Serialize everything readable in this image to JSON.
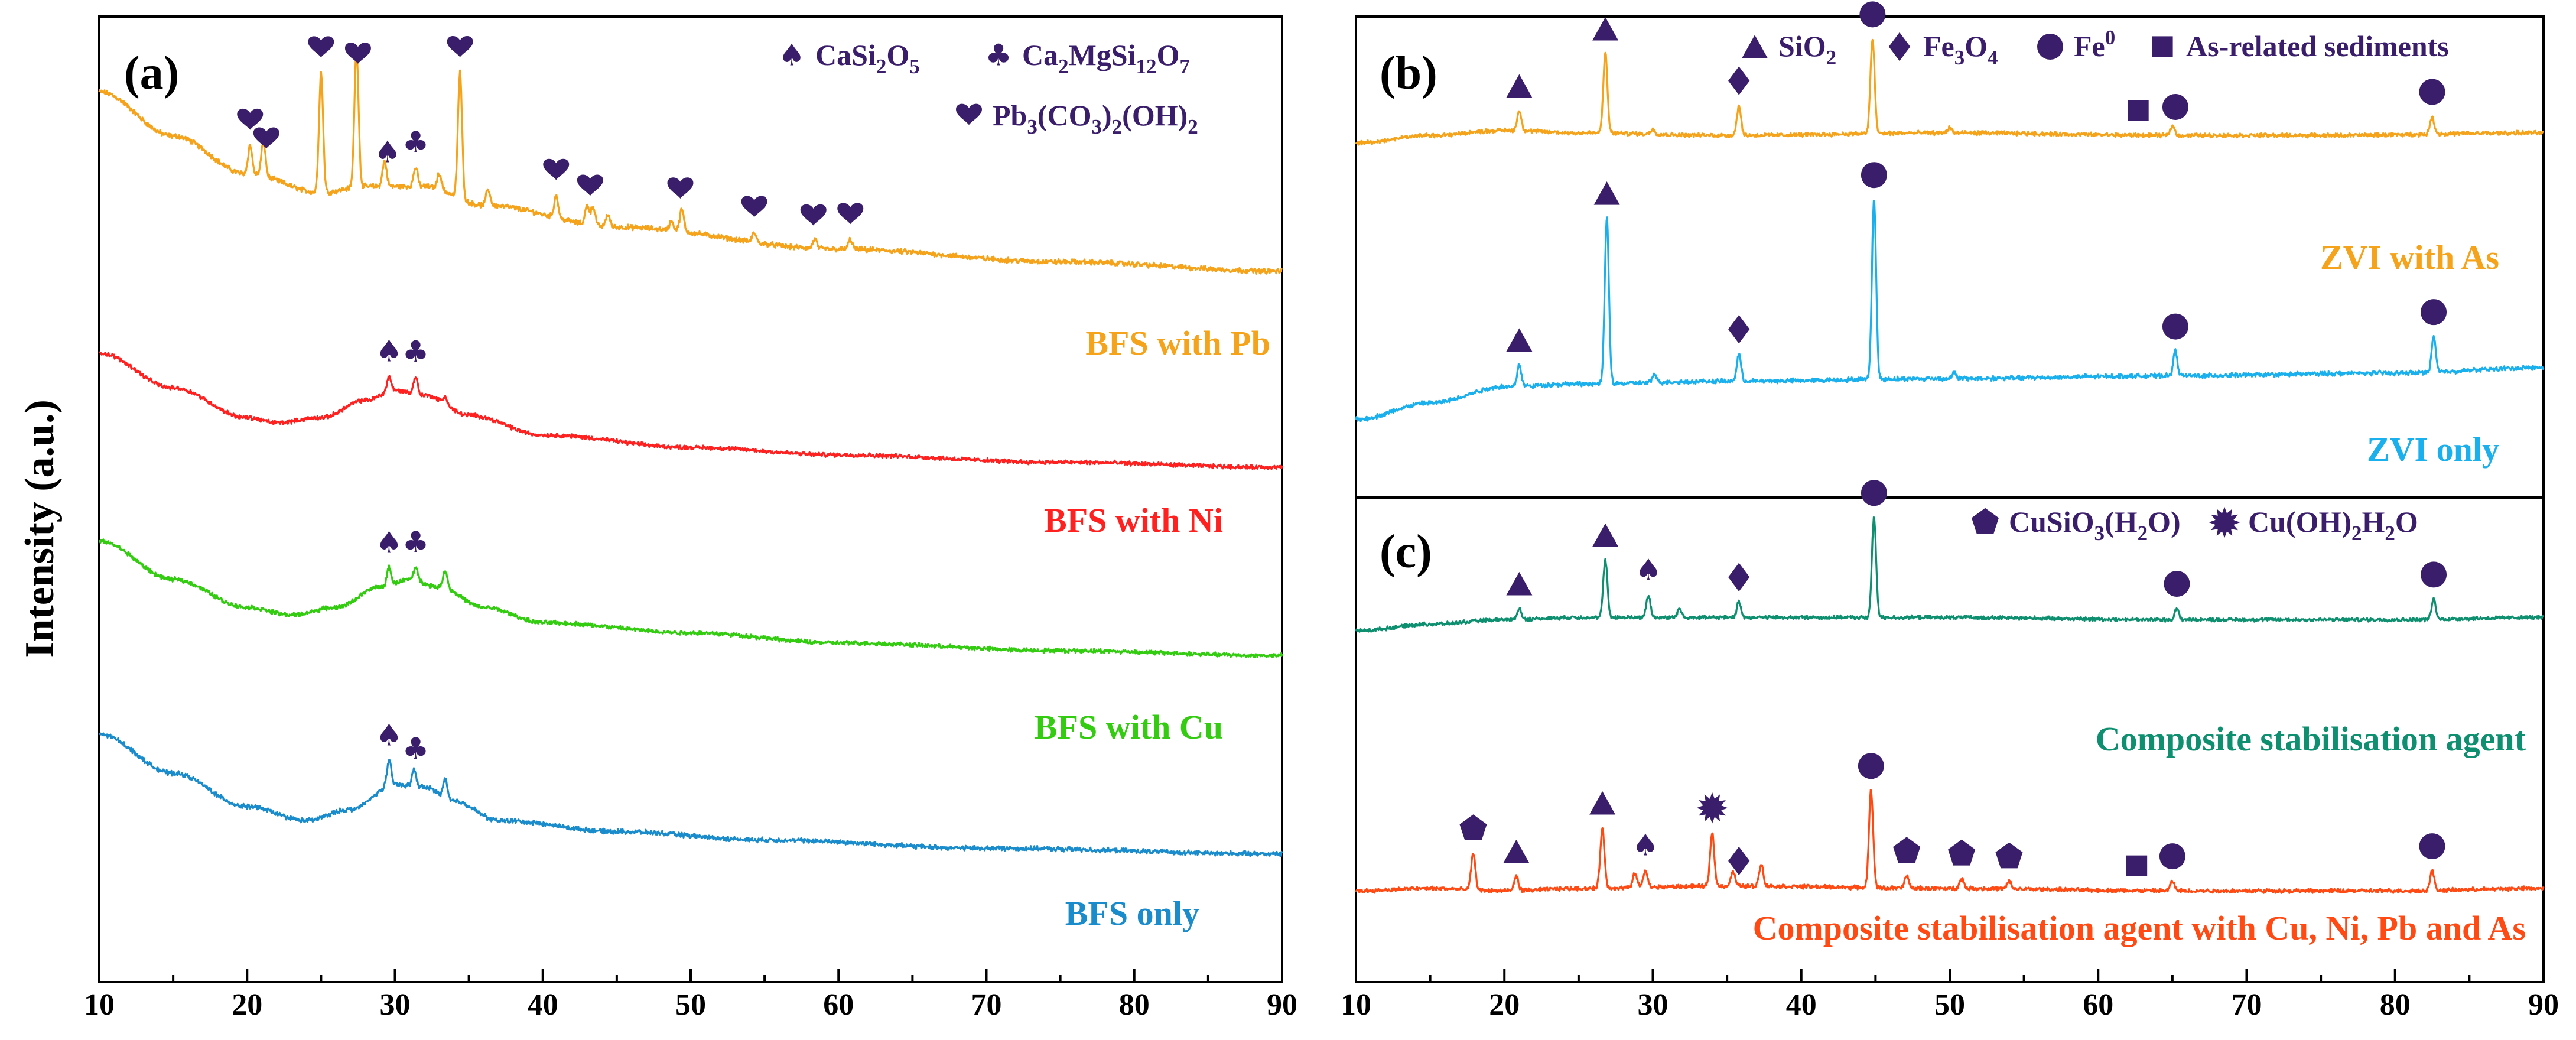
{
  "figure": {
    "ylabel": "Intensity (a.u.)",
    "xlabel": ""
  },
  "colors": {
    "marker": "#3b1e6b",
    "axis": "#000000"
  },
  "chart_data": [
    {
      "panel": "(a)",
      "type": "line",
      "xlim": [
        10,
        90
      ],
      "xticks": [
        10,
        20,
        30,
        40,
        50,
        60,
        70,
        80,
        90
      ],
      "legend_position": "top-right",
      "legend": [
        {
          "symbol": "spade",
          "label": "CaSi2O5"
        },
        {
          "symbol": "club",
          "label": "Ca2MgSi12O7"
        },
        {
          "symbol": "heart",
          "label": "Pb3(CO3)2(OH)2"
        }
      ],
      "series": [
        {
          "name": "BFS with Pb",
          "color": "#f5a31a",
          "baseline": [
            [
              10,
              0.76
            ],
            [
              15,
              0.62
            ],
            [
              20,
              0.5
            ],
            [
              25,
              0.44
            ],
            [
              28,
              0.46
            ],
            [
              32,
              0.46
            ],
            [
              36,
              0.4
            ],
            [
              45,
              0.33
            ],
            [
              60,
              0.26
            ],
            [
              75,
              0.22
            ],
            [
              90,
              0.19
            ]
          ],
          "peaks": [
            [
              20.2,
              0.09
            ],
            [
              21.1,
              0.11
            ],
            [
              25.0,
              0.38
            ],
            [
              27.4,
              0.44
            ],
            [
              29.3,
              0.08
            ],
            [
              31.4,
              0.06
            ],
            [
              33.0,
              0.05
            ],
            [
              34.4,
              0.4
            ],
            [
              36.3,
              0.05
            ],
            [
              40.9,
              0.07
            ],
            [
              43.0,
              0.06
            ],
            [
              43.4,
              0.06
            ],
            [
              44.4,
              0.04
            ],
            [
              48.7,
              0.03
            ],
            [
              49.4,
              0.07
            ],
            [
              54.3,
              0.03
            ],
            [
              58.4,
              0.03
            ],
            [
              60.8,
              0.03
            ]
          ],
          "markers": [
            {
              "symbol": "heart",
              "x": 20.2
            },
            {
              "symbol": "heart",
              "x": 21.3
            },
            {
              "symbol": "heart",
              "x": 25.0
            },
            {
              "symbol": "heart",
              "x": 27.5
            },
            {
              "symbol": "spade",
              "x": 29.5
            },
            {
              "symbol": "club",
              "x": 31.4
            },
            {
              "symbol": "heart",
              "x": 34.4
            },
            {
              "symbol": "heart",
              "x": 40.9
            },
            {
              "symbol": "heart",
              "x": 43.2
            },
            {
              "symbol": "heart",
              "x": 49.3
            },
            {
              "symbol": "heart",
              "x": 54.3
            },
            {
              "symbol": "heart",
              "x": 58.3
            },
            {
              "symbol": "heart",
              "x": 60.8
            }
          ]
        },
        {
          "name": "BFS with Ni",
          "color": "#ff2020",
          "baseline": [
            [
              10,
              0.72
            ],
            [
              15,
              0.58
            ],
            [
              20,
              0.46
            ],
            [
              22,
              0.44
            ],
            [
              25,
              0.46
            ],
            [
              28,
              0.53
            ],
            [
              30,
              0.57
            ],
            [
              32,
              0.55
            ],
            [
              35,
              0.47
            ],
            [
              40,
              0.39
            ],
            [
              50,
              0.34
            ],
            [
              60,
              0.31
            ],
            [
              75,
              0.28
            ],
            [
              90,
              0.26
            ]
          ],
          "peaks": [
            [
              29.6,
              0.06
            ],
            [
              31.4,
              0.07
            ],
            [
              33.4,
              0.03
            ]
          ],
          "markers": [
            {
              "symbol": "spade",
              "x": 29.6
            },
            {
              "symbol": "club",
              "x": 31.4
            }
          ]
        },
        {
          "name": "BFS with Cu",
          "color": "#33cc11",
          "baseline": [
            [
              10,
              0.73
            ],
            [
              15,
              0.58
            ],
            [
              20,
              0.47
            ],
            [
              23,
              0.44
            ],
            [
              26,
              0.47
            ],
            [
              29,
              0.55
            ],
            [
              31,
              0.58
            ],
            [
              33,
              0.55
            ],
            [
              36,
              0.47
            ],
            [
              40,
              0.41
            ],
            [
              50,
              0.37
            ],
            [
              60,
              0.33
            ],
            [
              75,
              0.3
            ],
            [
              90,
              0.28
            ]
          ],
          "peaks": [
            [
              29.6,
              0.07
            ],
            [
              31.4,
              0.05
            ],
            [
              33.4,
              0.07
            ]
          ],
          "markers": [
            {
              "symbol": "spade",
              "x": 29.6
            },
            {
              "symbol": "club",
              "x": 31.4
            }
          ]
        },
        {
          "name": "BFS only",
          "color": "#1a8ccc",
          "baseline": [
            [
              10,
              0.76
            ],
            [
              15,
              0.62
            ],
            [
              20,
              0.5
            ],
            [
              24,
              0.45
            ],
            [
              27,
              0.49
            ],
            [
              30,
              0.58
            ],
            [
              32,
              0.57
            ],
            [
              34,
              0.52
            ],
            [
              37,
              0.45
            ],
            [
              45,
              0.41
            ],
            [
              55,
              0.38
            ],
            [
              70,
              0.35
            ],
            [
              90,
              0.33
            ]
          ],
          "peaks": [
            [
              29.6,
              0.09
            ],
            [
              31.3,
              0.06
            ],
            [
              33.4,
              0.07
            ]
          ],
          "markers": [
            {
              "symbol": "spade",
              "x": 29.6
            },
            {
              "symbol": "club",
              "x": 31.4
            }
          ]
        }
      ]
    },
    {
      "panel": "(b)",
      "type": "line",
      "xlim": [
        10,
        90
      ],
      "legend_position": "top-right",
      "legend": [
        {
          "symbol": "triangle",
          "label": "SiO2"
        },
        {
          "symbol": "diamond",
          "label": "Fe3O4"
        },
        {
          "symbol": "circle",
          "label": "Fe0"
        },
        {
          "symbol": "square",
          "label": "As-related sediments"
        }
      ],
      "series": [
        {
          "name": "ZVI with As",
          "color": "#f5a31a",
          "baseline": [
            [
              10,
              0.52
            ],
            [
              15,
              0.55
            ],
            [
              20,
              0.57
            ],
            [
              25,
              0.56
            ],
            [
              35,
              0.55
            ],
            [
              50,
              0.56
            ],
            [
              65,
              0.55
            ],
            [
              75,
              0.55
            ],
            [
              90,
              0.56
            ]
          ],
          "peaks": [
            [
              21.0,
              0.08
            ],
            [
              26.8,
              0.32
            ],
            [
              35.8,
              0.12
            ],
            [
              44.8,
              0.38
            ],
            [
              65.0,
              0.04
            ],
            [
              82.5,
              0.07
            ],
            [
              30.0,
              0.02
            ],
            [
              50.0,
              0.02
            ]
          ],
          "markers": [
            {
              "symbol": "triangle",
              "x": 21.0
            },
            {
              "symbol": "triangle",
              "x": 26.8
            },
            {
              "symbol": "diamond",
              "x": 35.8
            },
            {
              "symbol": "circle",
              "x": 44.8
            },
            {
              "symbol": "square",
              "x": 62.7
            },
            {
              "symbol": "circle",
              "x": 65.2
            },
            {
              "symbol": "circle",
              "x": 82.5
            }
          ]
        },
        {
          "name": "ZVI only",
          "color": "#1ab0ee",
          "baseline": [
            [
              10,
              0.24
            ],
            [
              15,
              0.3
            ],
            [
              20,
              0.36
            ],
            [
              25,
              0.37
            ],
            [
              35,
              0.38
            ],
            [
              50,
              0.39
            ],
            [
              65,
              0.4
            ],
            [
              80,
              0.41
            ],
            [
              90,
              0.43
            ]
          ],
          "peaks": [
            [
              21.0,
              0.08
            ],
            [
              26.9,
              0.61
            ],
            [
              35.8,
              0.1
            ],
            [
              44.9,
              0.66
            ],
            [
              65.2,
              0.09
            ],
            [
              82.6,
              0.13
            ],
            [
              30.1,
              0.03
            ],
            [
              50.3,
              0.02
            ]
          ],
          "markers": [
            {
              "symbol": "triangle",
              "x": 21.0
            },
            {
              "symbol": "triangle",
              "x": 26.9
            },
            {
              "symbol": "diamond",
              "x": 35.8
            },
            {
              "symbol": "circle",
              "x": 44.9
            },
            {
              "symbol": "circle",
              "x": 65.2
            },
            {
              "symbol": "circle",
              "x": 82.6
            }
          ]
        }
      ]
    },
    {
      "panel": "(c)",
      "type": "line",
      "xlim": [
        10,
        90
      ],
      "xticks": [
        10,
        20,
        30,
        40,
        50,
        60,
        70,
        80,
        90
      ],
      "legend_position": "top-right",
      "legend": [
        {
          "symbol": "pentagon",
          "label": "CuSiO3(H2O)"
        },
        {
          "symbol": "star",
          "label": "Cu(OH)2H2O"
        }
      ],
      "series": [
        {
          "name": "Composite stabilisation agent",
          "color": "#0e9070",
          "baseline": [
            [
              10,
              0.54
            ],
            [
              15,
              0.57
            ],
            [
              20,
              0.59
            ],
            [
              25,
              0.6
            ],
            [
              35,
              0.6
            ],
            [
              50,
              0.6
            ],
            [
              65,
              0.59
            ],
            [
              80,
              0.59
            ],
            [
              90,
              0.6
            ]
          ],
          "peaks": [
            [
              21.0,
              0.05
            ],
            [
              26.8,
              0.26
            ],
            [
              29.7,
              0.1
            ],
            [
              31.8,
              0.04
            ],
            [
              35.8,
              0.07
            ],
            [
              44.9,
              0.45
            ],
            [
              65.3,
              0.05
            ],
            [
              82.6,
              0.09
            ]
          ],
          "markers": [
            {
              "symbol": "triangle",
              "x": 21.0
            },
            {
              "symbol": "triangle",
              "x": 26.8
            },
            {
              "symbol": "spade",
              "x": 29.7
            },
            {
              "symbol": "diamond",
              "x": 35.8
            },
            {
              "symbol": "circle",
              "x": 44.9
            },
            {
              "symbol": "circle",
              "x": 65.3
            },
            {
              "symbol": "circle",
              "x": 82.6
            }
          ]
        },
        {
          "name": "Composite stabilisation agent with Cu, Ni, Pb and As",
          "color": "#ff4a14",
          "baseline": [
            [
              10,
              0.25
            ],
            [
              15,
              0.26
            ],
            [
              20,
              0.25
            ],
            [
              25,
              0.26
            ],
            [
              35,
              0.27
            ],
            [
              50,
              0.26
            ],
            [
              65,
              0.25
            ],
            [
              80,
              0.25
            ],
            [
              90,
              0.26
            ]
          ],
          "peaks": [
            [
              17.9,
              0.15
            ],
            [
              20.8,
              0.06
            ],
            [
              26.6,
              0.25
            ],
            [
              28.8,
              0.06
            ],
            [
              29.5,
              0.07
            ],
            [
              34.0,
              0.22
            ],
            [
              35.4,
              0.06
            ],
            [
              37.3,
              0.09
            ],
            [
              44.7,
              0.4
            ],
            [
              47.1,
              0.05
            ],
            [
              50.8,
              0.04
            ],
            [
              54.0,
              0.03
            ],
            [
              65.0,
              0.04
            ],
            [
              82.5,
              0.08
            ]
          ],
          "markers": [
            {
              "symbol": "pentagon",
              "x": 17.9
            },
            {
              "symbol": "triangle",
              "x": 20.8
            },
            {
              "symbol": "triangle",
              "x": 26.6
            },
            {
              "symbol": "spade",
              "x": 29.5
            },
            {
              "symbol": "star",
              "x": 34.0
            },
            {
              "symbol": "diamond",
              "x": 35.8
            },
            {
              "symbol": "circle",
              "x": 44.7
            },
            {
              "symbol": "pentagon",
              "x": 47.1
            },
            {
              "symbol": "pentagon",
              "x": 50.8
            },
            {
              "symbol": "pentagon",
              "x": 54.0
            },
            {
              "symbol": "square",
              "x": 62.6
            },
            {
              "symbol": "circle",
              "x": 65.0
            },
            {
              "symbol": "circle",
              "x": 82.5
            }
          ]
        }
      ]
    }
  ]
}
